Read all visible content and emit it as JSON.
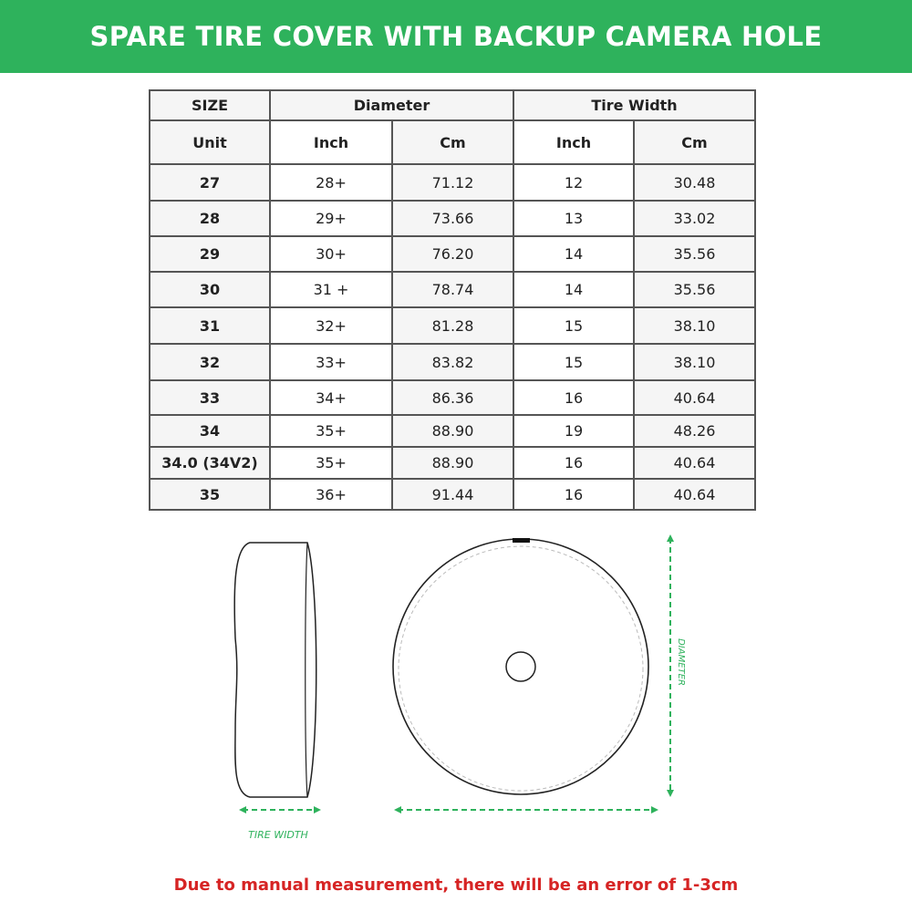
{
  "title": "SPARE TIRE COVER WITH BACKUP CAMERA HOLE",
  "table": {
    "group_headers": [
      "SIZE",
      "Diameter",
      "Tire Width"
    ],
    "sub_headers": [
      "Unit",
      "Inch",
      "Cm",
      "Inch",
      "Cm"
    ],
    "rows": [
      [
        "27",
        "28+",
        "71.12",
        "12",
        "30.48"
      ],
      [
        "28",
        "29+",
        "73.66",
        "13",
        "33.02"
      ],
      [
        "29",
        "30+",
        "76.20",
        "14",
        "35.56"
      ],
      [
        "30",
        "31 +",
        "78.74",
        "14",
        "35.56"
      ],
      [
        "31",
        "32+",
        "81.28",
        "15",
        "38.10"
      ],
      [
        "32",
        "33+",
        "83.82",
        "15",
        "38.10"
      ],
      [
        "33",
        "34+",
        "86.36",
        "16",
        "40.64"
      ],
      [
        "34",
        "35+",
        "88.90",
        "19",
        "48.26"
      ],
      [
        "34.0 (34V2)",
        "35+",
        "88.90",
        "16",
        "40.64"
      ],
      [
        "35",
        "36+",
        "91.44",
        "16",
        "40.64"
      ]
    ]
  },
  "diagram": {
    "tire_width_label": "TIRE WIDTH",
    "diameter_label": "DIAMETER",
    "accent_color": "#2eb25c"
  },
  "footer_note": "Due to manual measurement, there will be an error of 1-3cm",
  "colors": {
    "banner": "#2eb25c",
    "note": "#d62424"
  }
}
